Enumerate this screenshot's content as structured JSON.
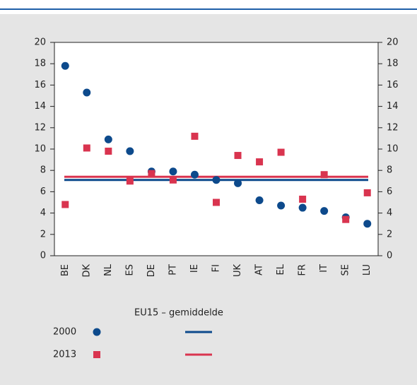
{
  "chart_data": {
    "type": "scatter",
    "categories": [
      "BE",
      "DK",
      "NL",
      "ES",
      "DE",
      "PT",
      "IE",
      "FI",
      "UK",
      "AT",
      "EL",
      "FR",
      "IT",
      "SE",
      "LU"
    ],
    "series": [
      {
        "name": "2000",
        "color": "#0d4a8c",
        "marker": "circle",
        "average": 7.1,
        "values": [
          17.8,
          15.3,
          10.9,
          9.8,
          7.9,
          7.9,
          7.6,
          7.1,
          6.8,
          5.2,
          4.7,
          4.5,
          4.2,
          3.6,
          3.0
        ]
      },
      {
        "name": "2013",
        "color": "#d9344f",
        "marker": "square",
        "average": 7.4,
        "values": [
          4.8,
          10.1,
          9.8,
          7.0,
          7.7,
          7.1,
          11.2,
          5.0,
          9.4,
          8.8,
          9.7,
          5.3,
          7.6,
          3.4,
          5.9
        ]
      }
    ],
    "legend_title": "EU15 – gemiddelde",
    "ylim": [
      0,
      20
    ],
    "yticks": [
      0,
      2,
      4,
      6,
      8,
      10,
      12,
      14,
      16,
      18,
      20
    ],
    "grid": false
  }
}
